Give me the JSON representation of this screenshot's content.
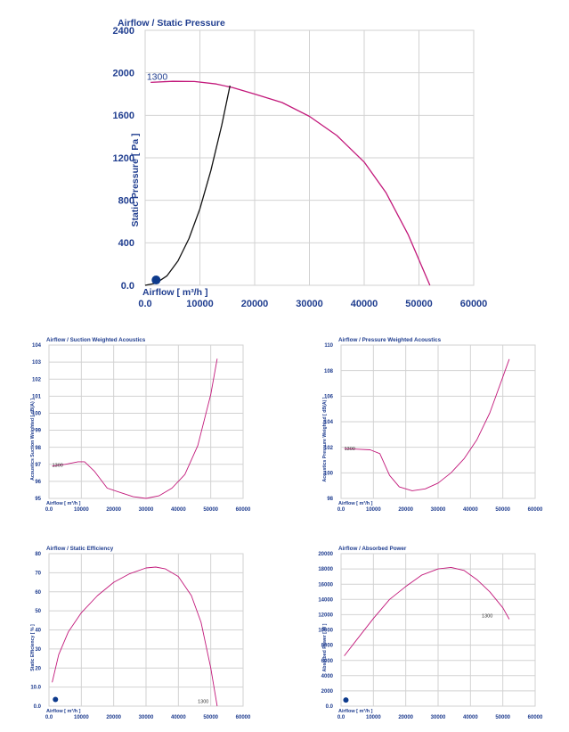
{
  "colors": {
    "curve": "#c2187a",
    "system": "#111111",
    "text": "#1f3d8f",
    "marker": "#0d3a8c",
    "grid": "#d2d2d2"
  },
  "chart_data": [
    {
      "id": "main",
      "type": "line",
      "title": "Airflow / Static Pressure",
      "xlabel": "Airflow [ m³/h ]",
      "ylabel": "Static Pressure [ Pa ]",
      "xlim": [
        0,
        60000
      ],
      "ylim": [
        0,
        2400
      ],
      "xticks": [
        0,
        10000,
        20000,
        30000,
        40000,
        50000,
        60000
      ],
      "xtick_labels": [
        "0.0",
        "10000",
        "20000",
        "30000",
        "40000",
        "50000",
        "60000"
      ],
      "yticks": [
        0,
        400,
        800,
        1200,
        1600,
        2000,
        2400
      ],
      "ytick_labels": [
        "0.0",
        "400",
        "800",
        "1200",
        "1600",
        "2000",
        "2400"
      ],
      "grid": true,
      "series": [
        {
          "name": "1300",
          "label_x": 300,
          "label_y": 1935,
          "points": [
            [
              1000,
              1910
            ],
            [
              5000,
              1920
            ],
            [
              9000,
              1918
            ],
            [
              13000,
              1895
            ],
            [
              16000,
              1860
            ],
            [
              20000,
              1800
            ],
            [
              25000,
              1720
            ],
            [
              30000,
              1590
            ],
            [
              35000,
              1410
            ],
            [
              40000,
              1160
            ],
            [
              44000,
              870
            ],
            [
              48000,
              480
            ],
            [
              52000,
              0
            ]
          ]
        },
        {
          "name": "system",
          "points": [
            [
              0,
              0
            ],
            [
              2000,
              20
            ],
            [
              4000,
              90
            ],
            [
              6000,
              230
            ],
            [
              8000,
              440
            ],
            [
              10000,
              720
            ],
            [
              12000,
              1080
            ],
            [
              14000,
              1510
            ],
            [
              15500,
              1880
            ]
          ]
        }
      ],
      "marker": [
        2000,
        50
      ]
    },
    {
      "id": "suction",
      "type": "line",
      "title": "Airflow / Suction Weighted Acoustics",
      "xlabel": "Airflow [ m³/h ]",
      "ylabel": "Acoustics Suction Weighted [ dB(A) ]",
      "xlim": [
        0,
        60000
      ],
      "ylim": [
        95,
        104
      ],
      "xticks": [
        0,
        10000,
        20000,
        30000,
        40000,
        50000,
        60000
      ],
      "xtick_labels": [
        "0.0",
        "10000",
        "20000",
        "30000",
        "40000",
        "50000",
        "60000"
      ],
      "yticks": [
        95,
        96,
        97,
        98,
        99,
        100,
        101,
        102,
        103,
        104
      ],
      "ytick_labels": [
        "95",
        "96",
        "97",
        "98",
        "99",
        "100",
        "101",
        "102",
        "103",
        "104"
      ],
      "grid": true,
      "series": [
        {
          "name": "1300",
          "label_x": 1000,
          "label_y": 96.95,
          "points": [
            [
              1000,
              96.9
            ],
            [
              5000,
              97.0
            ],
            [
              9000,
              97.15
            ],
            [
              11000,
              97.15
            ],
            [
              14000,
              96.6
            ],
            [
              18000,
              95.6
            ],
            [
              22000,
              95.35
            ],
            [
              26000,
              95.1
            ],
            [
              30000,
              95.0
            ],
            [
              34000,
              95.15
            ],
            [
              38000,
              95.6
            ],
            [
              42000,
              96.4
            ],
            [
              46000,
              98.1
            ],
            [
              50000,
              101.1
            ],
            [
              52000,
              103.2
            ]
          ]
        }
      ]
    },
    {
      "id": "pressure",
      "type": "line",
      "title": "Airflow / Pressure Weighted Acoustics",
      "xlabel": "Airflow [ m³/h ]",
      "ylabel": "Acoustics Pressure Weighted [ dB(A) ]",
      "xlim": [
        0,
        60000
      ],
      "ylim": [
        98,
        110
      ],
      "xticks": [
        0,
        10000,
        20000,
        30000,
        40000,
        50000,
        60000
      ],
      "xtick_labels": [
        "0.0",
        "10000",
        "20000",
        "30000",
        "40000",
        "50000",
        "60000"
      ],
      "yticks": [
        98,
        100,
        102,
        104,
        106,
        108,
        110
      ],
      "ytick_labels": [
        "98",
        "100",
        "102",
        "104",
        "106",
        "108",
        "110"
      ],
      "grid": true,
      "series": [
        {
          "name": "1300",
          "label_x": 1000,
          "label_y": 101.9,
          "points": [
            [
              1000,
              101.9
            ],
            [
              5000,
              101.85
            ],
            [
              9000,
              101.8
            ],
            [
              12000,
              101.5
            ],
            [
              15000,
              99.8
            ],
            [
              18000,
              98.9
            ],
            [
              22000,
              98.6
            ],
            [
              26000,
              98.75
            ],
            [
              30000,
              99.2
            ],
            [
              34000,
              100.0
            ],
            [
              38000,
              101.1
            ],
            [
              42000,
              102.6
            ],
            [
              46000,
              104.7
            ],
            [
              50000,
              107.5
            ],
            [
              52000,
              108.9
            ]
          ]
        }
      ]
    },
    {
      "id": "efficiency",
      "type": "line",
      "title": "Airflow / Static Efficiency",
      "xlabel": "Airflow [ m³/h ]",
      "ylabel": "Static Efficiency [ % ]",
      "xlim": [
        0,
        60000
      ],
      "ylim": [
        0,
        80
      ],
      "xticks": [
        0,
        10000,
        20000,
        30000,
        40000,
        50000,
        60000
      ],
      "xtick_labels": [
        "0.0",
        "10000",
        "20000",
        "30000",
        "40000",
        "50000",
        "60000"
      ],
      "yticks": [
        0,
        10,
        20,
        30,
        40,
        50,
        60,
        70,
        80
      ],
      "ytick_labels": [
        "0.0",
        "10.0",
        "20",
        "30",
        "40",
        "50",
        "60",
        "70",
        "80"
      ],
      "grid": true,
      "series": [
        {
          "name": "1300",
          "label_x": 46000,
          "label_y": 2.5,
          "points": [
            [
              1000,
              12.5
            ],
            [
              3000,
              27
            ],
            [
              6000,
              39
            ],
            [
              10000,
              49
            ],
            [
              15000,
              58
            ],
            [
              20000,
              65
            ],
            [
              25000,
              69.5
            ],
            [
              30000,
              72.5
            ],
            [
              33000,
              73
            ],
            [
              36000,
              72
            ],
            [
              40000,
              68
            ],
            [
              44000,
              58
            ],
            [
              47000,
              44
            ],
            [
              50000,
              20
            ],
            [
              52000,
              0
            ]
          ]
        }
      ],
      "marker": [
        2000,
        3.5
      ]
    },
    {
      "id": "power",
      "type": "line",
      "title": "Airflow / Absorbed Power",
      "xlabel": "Airflow [ m³/h ]",
      "ylabel": "Absorbed Power [ W ]",
      "xlim": [
        0,
        60000
      ],
      "ylim": [
        0,
        20000
      ],
      "xticks": [
        0,
        10000,
        20000,
        30000,
        40000,
        50000,
        60000
      ],
      "xtick_labels": [
        "0.0",
        "10000",
        "20000",
        "30000",
        "40000",
        "50000",
        "60000"
      ],
      "yticks": [
        0,
        2000,
        4000,
        6000,
        8000,
        10000,
        12000,
        14000,
        16000,
        18000,
        20000
      ],
      "ytick_labels": [
        "0.0",
        "2000",
        "4000",
        "6000",
        "8000",
        "10000",
        "12000",
        "14000",
        "16000",
        "18000",
        "20000"
      ],
      "grid": true,
      "series": [
        {
          "name": "1300",
          "label_x": 43500,
          "label_y": 11900,
          "points": [
            [
              1000,
              6600
            ],
            [
              5000,
              8800
            ],
            [
              10000,
              11500
            ],
            [
              15000,
              14000
            ],
            [
              20000,
              15700
            ],
            [
              25000,
              17200
            ],
            [
              30000,
              18000
            ],
            [
              34000,
              18200
            ],
            [
              38000,
              17800
            ],
            [
              42000,
              16600
            ],
            [
              46000,
              15000
            ],
            [
              50000,
              12900
            ],
            [
              52000,
              11400
            ]
          ]
        }
      ],
      "marker": [
        1500,
        800
      ]
    }
  ]
}
